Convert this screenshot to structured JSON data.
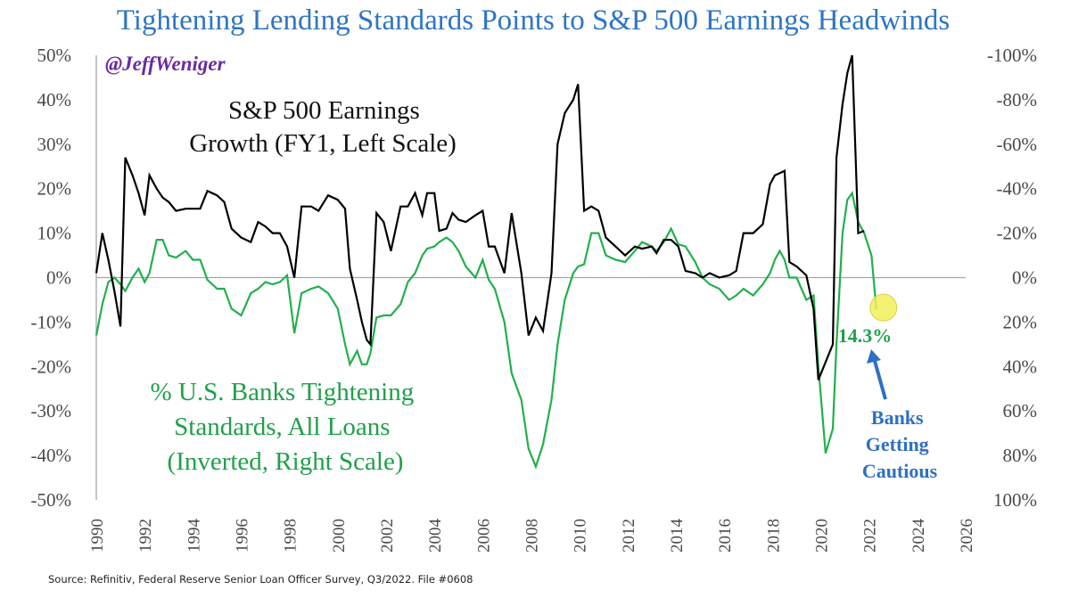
{
  "chart_data": {
    "type": "line",
    "title": "Tightening Lending Standards Points to S&P 500 Earnings Headwinds",
    "watermark": "@JeffWeniger",
    "source": "Source: Refinitiv, Federal Reserve Senior Loan Officer Survey, Q3/2022. File #0608",
    "colors": {
      "title": "#2e75c5",
      "watermark": "#6a2c9e",
      "earnings": "#000000",
      "banks": "#22b04b",
      "banks_label": "#1fa04a",
      "callout": "#2f6fc4",
      "highlight": "#f2ef5a",
      "axis_text": "#4a4a4a",
      "zero_line": "#a6a6a6"
    },
    "x_axis": {
      "min": 1990,
      "max": 2026,
      "ticks": [
        "1990",
        "1992",
        "1994",
        "1996",
        "1998",
        "2000",
        "2002",
        "2004",
        "2006",
        "2008",
        "2010",
        "2012",
        "2014",
        "2016",
        "2018",
        "2020",
        "2022",
        "2024",
        "2026"
      ]
    },
    "y_left": {
      "min": -50,
      "max": 50,
      "ticks": [
        "50%",
        "40%",
        "30%",
        "20%",
        "10%",
        "0%",
        "-10%",
        "-20%",
        "-30%",
        "-40%",
        "-50%"
      ]
    },
    "y_right": {
      "min": 100,
      "max": -100,
      "inverted": true,
      "ticks": [
        "-100%",
        "-80%",
        "-60%",
        "-40%",
        "-20%",
        "0%",
        "20%",
        "40%",
        "60%",
        "80%",
        "100%"
      ]
    },
    "annotations": {
      "earnings_label": [
        "S&P 500 Earnings",
        "Growth (FY1, Left Scale)"
      ],
      "banks_label": [
        "% U.S. Banks Tightening",
        "Standards, All Loans",
        "(Inverted, Right Scale)"
      ],
      "last_value": "14.3%",
      "callout": [
        "Banks",
        "Getting",
        "Cautious"
      ]
    },
    "series": [
      {
        "name": "S&P 500 Earnings Growth (FY1, Left Scale)",
        "axis": "left",
        "points": [
          [
            1990.0,
            1
          ],
          [
            1990.25,
            10
          ],
          [
            1990.5,
            4
          ],
          [
            1990.75,
            -3
          ],
          [
            1991.0,
            -11
          ],
          [
            1991.2,
            27
          ],
          [
            1991.5,
            23
          ],
          [
            1991.75,
            19
          ],
          [
            1992.0,
            14
          ],
          [
            1992.2,
            23
          ],
          [
            1992.5,
            20
          ],
          [
            1992.75,
            18
          ],
          [
            1993.0,
            17
          ],
          [
            1993.3,
            15
          ],
          [
            1993.7,
            15.5
          ],
          [
            1994.0,
            15.5
          ],
          [
            1994.3,
            15.5
          ],
          [
            1994.6,
            19.5
          ],
          [
            1995.0,
            18.5
          ],
          [
            1995.3,
            17
          ],
          [
            1995.6,
            11
          ],
          [
            1996.0,
            9
          ],
          [
            1996.4,
            8
          ],
          [
            1996.7,
            12.5
          ],
          [
            1997.0,
            11.5
          ],
          [
            1997.3,
            10
          ],
          [
            1997.6,
            10
          ],
          [
            1997.9,
            7
          ],
          [
            1998.2,
            0
          ],
          [
            1998.5,
            16
          ],
          [
            1998.9,
            16
          ],
          [
            1999.2,
            15
          ],
          [
            1999.6,
            18.5
          ],
          [
            2000.0,
            17.5
          ],
          [
            2000.3,
            15.5
          ],
          [
            2000.5,
            2
          ],
          [
            2000.8,
            -5
          ],
          [
            2001.0,
            -10
          ],
          [
            2001.2,
            -14
          ],
          [
            2001.35,
            -15
          ],
          [
            2001.6,
            14.5
          ],
          [
            2001.9,
            12.5
          ],
          [
            2002.2,
            6
          ],
          [
            2002.6,
            16
          ],
          [
            2002.9,
            16
          ],
          [
            2003.2,
            19
          ],
          [
            2003.5,
            14
          ],
          [
            2003.7,
            19
          ],
          [
            2004.0,
            19
          ],
          [
            2004.2,
            10.5
          ],
          [
            2004.5,
            11
          ],
          [
            2004.75,
            14.5
          ],
          [
            2005.0,
            13
          ],
          [
            2005.3,
            12.5
          ],
          [
            2005.7,
            14
          ],
          [
            2006.0,
            15
          ],
          [
            2006.25,
            7
          ],
          [
            2006.5,
            7
          ],
          [
            2006.9,
            1
          ],
          [
            2007.2,
            14.5
          ],
          [
            2007.6,
            1
          ],
          [
            2007.9,
            -13
          ],
          [
            2008.2,
            -9
          ],
          [
            2008.5,
            -12
          ],
          [
            2008.85,
            1
          ],
          [
            2009.1,
            30
          ],
          [
            2009.4,
            37
          ],
          [
            2009.75,
            40
          ],
          [
            2009.95,
            43.5
          ],
          [
            2010.2,
            15
          ],
          [
            2010.5,
            16
          ],
          [
            2010.8,
            15
          ],
          [
            2011.1,
            9
          ],
          [
            2011.5,
            7
          ],
          [
            2011.9,
            5
          ],
          [
            2012.3,
            7
          ],
          [
            2012.6,
            6.5
          ],
          [
            2013.0,
            7
          ],
          [
            2013.2,
            5.5
          ],
          [
            2013.5,
            8.5
          ],
          [
            2013.8,
            8.5
          ],
          [
            2014.1,
            7
          ],
          [
            2014.4,
            1.5
          ],
          [
            2014.8,
            1
          ],
          [
            2015.1,
            0
          ],
          [
            2015.4,
            1
          ],
          [
            2015.8,
            0
          ],
          [
            2016.2,
            0.5
          ],
          [
            2016.5,
            1.5
          ],
          [
            2016.8,
            10
          ],
          [
            2017.2,
            10
          ],
          [
            2017.6,
            12
          ],
          [
            2017.9,
            21
          ],
          [
            2018.1,
            23
          ],
          [
            2018.3,
            23.5
          ],
          [
            2018.5,
            24
          ],
          [
            2018.7,
            3.5
          ],
          [
            2019.0,
            2.5
          ],
          [
            2019.4,
            0.5
          ],
          [
            2019.7,
            -7
          ],
          [
            2019.9,
            -23
          ],
          [
            2020.2,
            -19
          ],
          [
            2020.5,
            -15
          ],
          [
            2020.65,
            27
          ],
          [
            2020.9,
            39
          ],
          [
            2021.1,
            46
          ],
          [
            2021.3,
            50
          ],
          [
            2021.55,
            10
          ],
          [
            2021.8,
            10.5
          ]
        ]
      },
      {
        "name": "% U.S. Banks Tightening Standards, All Loans (Inverted, Right Scale)",
        "axis": "right",
        "points": [
          [
            1990.0,
            26
          ],
          [
            1990.25,
            12
          ],
          [
            1990.5,
            2
          ],
          [
            1990.75,
            0
          ],
          [
            1991.0,
            3
          ],
          [
            1991.2,
            6
          ],
          [
            1991.5,
            0
          ],
          [
            1991.75,
            -4
          ],
          [
            1992.0,
            2
          ],
          [
            1992.2,
            -2
          ],
          [
            1992.5,
            -17
          ],
          [
            1992.75,
            -17
          ],
          [
            1993.0,
            -10
          ],
          [
            1993.3,
            -9
          ],
          [
            1993.7,
            -12
          ],
          [
            1994.0,
            -8
          ],
          [
            1994.3,
            -8
          ],
          [
            1994.6,
            1
          ],
          [
            1995.0,
            5
          ],
          [
            1995.3,
            5
          ],
          [
            1995.6,
            14
          ],
          [
            1996.0,
            17
          ],
          [
            1996.4,
            7
          ],
          [
            1996.7,
            5
          ],
          [
            1997.0,
            2
          ],
          [
            1997.3,
            3
          ],
          [
            1997.6,
            2
          ],
          [
            1997.9,
            -1
          ],
          [
            1998.2,
            25
          ],
          [
            1998.5,
            7
          ],
          [
            1998.9,
            5
          ],
          [
            1999.2,
            4
          ],
          [
            1999.6,
            7
          ],
          [
            2000.0,
            14
          ],
          [
            2000.3,
            30
          ],
          [
            2000.5,
            39
          ],
          [
            2000.8,
            33
          ],
          [
            2001.0,
            39
          ],
          [
            2001.2,
            39
          ],
          [
            2001.35,
            34
          ],
          [
            2001.6,
            18
          ],
          [
            2001.9,
            17
          ],
          [
            2002.2,
            17
          ],
          [
            2002.6,
            12
          ],
          [
            2002.9,
            2
          ],
          [
            2003.2,
            -2
          ],
          [
            2003.5,
            -10
          ],
          [
            2003.7,
            -13
          ],
          [
            2004.0,
            -14
          ],
          [
            2004.2,
            -16
          ],
          [
            2004.5,
            -18
          ],
          [
            2004.75,
            -16
          ],
          [
            2005.0,
            -12
          ],
          [
            2005.3,
            -5
          ],
          [
            2005.7,
            0
          ],
          [
            2006.0,
            -8
          ],
          [
            2006.25,
            1
          ],
          [
            2006.5,
            5
          ],
          [
            2006.9,
            20
          ],
          [
            2007.2,
            43
          ],
          [
            2007.6,
            55
          ],
          [
            2007.9,
            77
          ],
          [
            2008.2,
            85
          ],
          [
            2008.5,
            75
          ],
          [
            2008.85,
            55
          ],
          [
            2009.1,
            30
          ],
          [
            2009.4,
            10
          ],
          [
            2009.75,
            -2
          ],
          [
            2009.95,
            -5
          ],
          [
            2010.2,
            -6
          ],
          [
            2010.5,
            -20
          ],
          [
            2010.8,
            -20
          ],
          [
            2011.1,
            -10
          ],
          [
            2011.5,
            -8
          ],
          [
            2011.9,
            -7
          ],
          [
            2012.3,
            -12
          ],
          [
            2012.6,
            -16
          ],
          [
            2013.0,
            -14
          ],
          [
            2013.2,
            -12
          ],
          [
            2013.5,
            -16
          ],
          [
            2013.8,
            -22
          ],
          [
            2014.1,
            -15
          ],
          [
            2014.4,
            -14
          ],
          [
            2014.8,
            -7
          ],
          [
            2015.1,
            0
          ],
          [
            2015.4,
            3
          ],
          [
            2015.8,
            5
          ],
          [
            2016.2,
            10
          ],
          [
            2016.5,
            8
          ],
          [
            2016.8,
            5
          ],
          [
            2017.2,
            8
          ],
          [
            2017.6,
            3
          ],
          [
            2017.9,
            -2
          ],
          [
            2018.1,
            -8
          ],
          [
            2018.3,
            -12
          ],
          [
            2018.5,
            -8
          ],
          [
            2018.7,
            0
          ],
          [
            2019.0,
            0
          ],
          [
            2019.4,
            10
          ],
          [
            2019.7,
            8
          ],
          [
            2019.9,
            40
          ],
          [
            2020.2,
            79
          ],
          [
            2020.5,
            68
          ],
          [
            2020.65,
            30
          ],
          [
            2020.9,
            -20
          ],
          [
            2021.1,
            -35
          ],
          [
            2021.3,
            -38
          ],
          [
            2021.55,
            -25
          ],
          [
            2021.8,
            -20
          ],
          [
            2022.1,
            -10
          ],
          [
            2022.3,
            14.3
          ]
        ]
      }
    ]
  }
}
